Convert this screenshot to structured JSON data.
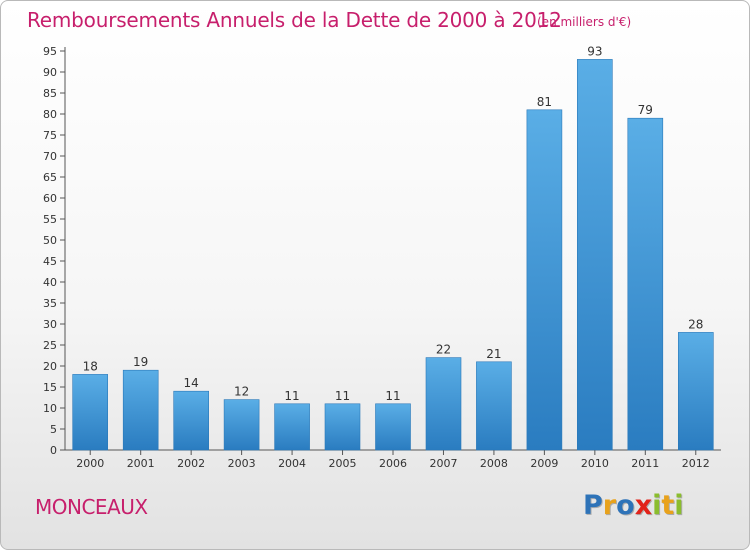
{
  "header": {
    "title": "Remboursements Annuels de la Dette de 2000 à 2012",
    "unit": "(en milliers d'€)"
  },
  "footer": {
    "commune": "MONCEAUX",
    "logo": [
      "P",
      "r",
      "o",
      "x",
      "i",
      "t",
      "i"
    ]
  },
  "colors": {
    "title": "#c71f6c",
    "bar_light": "#5aaee6",
    "bar_dark": "#2a7cc0",
    "logo": [
      "#2e73b8",
      "#e8a21c",
      "#2e73b8",
      "#e2231a",
      "#8bbd2e",
      "#e8a21c",
      "#8bbd2e"
    ]
  },
  "chart_data": {
    "type": "bar",
    "categories": [
      "2000",
      "2001",
      "2002",
      "2003",
      "2004",
      "2005",
      "2006",
      "2007",
      "2008",
      "2009",
      "2010",
      "2011",
      "2012"
    ],
    "values": [
      18,
      19,
      14,
      12,
      11,
      11,
      11,
      22,
      21,
      81,
      93,
      79,
      28
    ],
    "title": "Remboursements Annuels de la Dette de 2000 à 2012",
    "unit": "(en milliers d'€)",
    "xlabel": "",
    "ylabel": "",
    "ylim": [
      0,
      95
    ],
    "ytick_step": 5,
    "grid": false,
    "legend": "none"
  }
}
